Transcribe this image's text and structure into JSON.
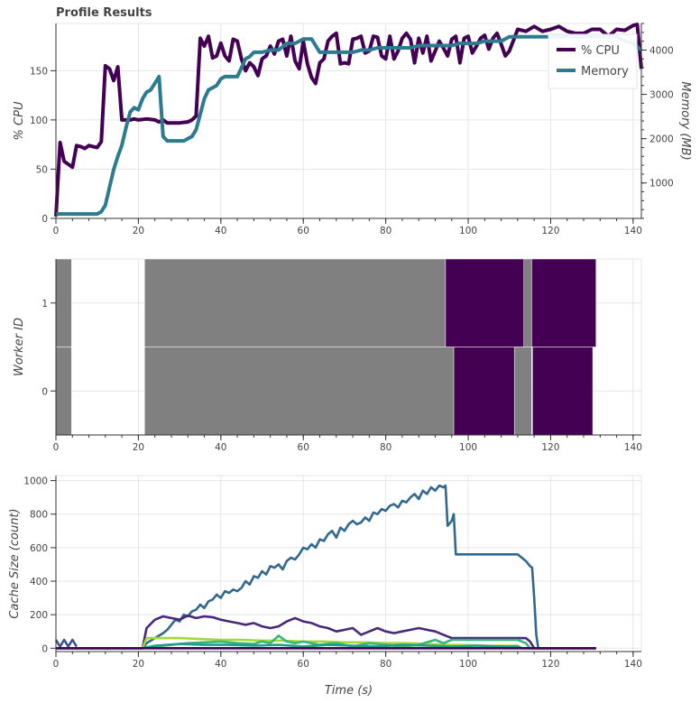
{
  "chart_data": [
    {
      "type": "line",
      "title": "Profile Results",
      "xlabel": "",
      "ylabel": "% CPU",
      "ylabel_right": "Memory (MB)",
      "xlim": [
        0,
        142
      ],
      "ylim": [
        0,
        198
      ],
      "ylim_right": [
        200,
        4600
      ],
      "xticks": [
        0,
        20,
        40,
        60,
        80,
        100,
        120,
        140
      ],
      "yticks": [
        0,
        50,
        100,
        150
      ],
      "yticks_right": [
        1000,
        2000,
        3000,
        4000
      ],
      "grid": true,
      "legend_position": "top-right",
      "series": [
        {
          "name": "% CPU",
          "color": "#440154",
          "axis": "left",
          "x": [
            0,
            1,
            2,
            3,
            4,
            5,
            6,
            7,
            8,
            9,
            10,
            11,
            12,
            13,
            14,
            15,
            16,
            17,
            18,
            19,
            20,
            22,
            24,
            25,
            26,
            27,
            28,
            30,
            32,
            33,
            34,
            35,
            36,
            37,
            38,
            39,
            40,
            41,
            42,
            43,
            44,
            45,
            46,
            47,
            48,
            49,
            50,
            51,
            52,
            53,
            54,
            55,
            56,
            57,
            58,
            59,
            60,
            61,
            62,
            63,
            64,
            65,
            66,
            67,
            68,
            69,
            70,
            71,
            72,
            73,
            74,
            75,
            76,
            77,
            78,
            79,
            80,
            81,
            82,
            83,
            84,
            85,
            86,
            87,
            88,
            89,
            90,
            91,
            92,
            93,
            94,
            95,
            96,
            97,
            98,
            99,
            100,
            101,
            102,
            103,
            104,
            105,
            106,
            107,
            108,
            109,
            110,
            112,
            114,
            116,
            118,
            120,
            122,
            124,
            126,
            128,
            130,
            132,
            134,
            136,
            138,
            140,
            141,
            142
          ],
          "y": [
            2,
            77,
            58,
            55,
            52,
            74,
            73,
            71,
            74,
            73,
            72,
            78,
            155,
            152,
            140,
            154,
            100,
            100,
            100,
            101,
            100,
            101,
            100,
            98,
            100,
            97,
            97,
            97,
            98,
            100,
            104,
            183,
            175,
            185,
            163,
            165,
            178,
            165,
            160,
            182,
            180,
            162,
            150,
            158,
            154,
            145,
            162,
            165,
            175,
            167,
            180,
            182,
            165,
            185,
            160,
            152,
            180,
            157,
            143,
            137,
            158,
            162,
            180,
            185,
            188,
            157,
            158,
            157,
            182,
            183,
            185,
            168,
            170,
            185,
            184,
            165,
            162,
            185,
            162,
            170,
            183,
            188,
            182,
            158,
            183,
            168,
            185,
            160,
            170,
            180,
            173,
            165,
            182,
            185,
            158,
            183,
            185,
            168,
            175,
            183,
            186,
            172,
            183,
            188,
            177,
            165,
            170,
            192,
            190,
            195,
            190,
            192,
            195,
            190,
            188,
            188,
            192,
            192,
            185,
            192,
            191,
            196,
            197,
            152
          ]
        },
        {
          "name": "Memory",
          "color": "#2c7b8f",
          "axis": "right",
          "x": [
            0,
            10,
            11,
            12,
            13,
            14,
            15,
            16,
            17,
            18,
            19,
            20,
            21,
            22,
            23,
            24,
            25,
            26,
            27,
            28,
            29,
            30,
            31,
            32,
            33,
            34,
            35,
            36,
            37,
            38,
            39,
            40,
            41,
            42,
            43,
            44,
            45,
            46,
            47,
            48,
            49,
            50,
            52,
            54,
            56,
            58,
            60,
            62,
            63,
            64,
            66,
            68,
            70,
            72,
            74,
            76,
            78,
            80,
            82,
            84,
            86,
            88,
            90,
            92,
            94,
            96,
            98,
            100,
            102,
            104,
            106,
            108,
            110,
            112,
            114,
            116,
            118,
            120,
            122,
            124,
            126,
            128,
            130,
            132,
            134,
            136,
            138,
            140,
            142
          ],
          "y": [
            300,
            300,
            350,
            500,
            900,
            1300,
            1600,
            1850,
            2250,
            2600,
            2700,
            2650,
            2900,
            3050,
            3100,
            3250,
            3400,
            2050,
            1950,
            1950,
            1950,
            1950,
            1950,
            2000,
            2050,
            2200,
            2550,
            2900,
            3100,
            3150,
            3200,
            3350,
            3400,
            3400,
            3400,
            3400,
            3600,
            3800,
            3850,
            3950,
            3950,
            3950,
            4000,
            4000,
            4150,
            4150,
            4250,
            4250,
            4100,
            3950,
            3950,
            3950,
            3950,
            3950,
            4000,
            4000,
            4050,
            4050,
            4050,
            4050,
            4050,
            4100,
            4100,
            4100,
            4100,
            4100,
            4150,
            4150,
            4150,
            4200,
            4200,
            4200,
            4300,
            4300,
            4300,
            4300,
            4300,
            4300,
            4300,
            4300,
            4300,
            4300,
            4300,
            4300,
            4300,
            4300,
            4200,
            4150,
            4000
          ]
        }
      ]
    },
    {
      "type": "bar",
      "subtype": "task-stream",
      "title": "",
      "xlabel": "",
      "ylabel": "Worker ID",
      "xlim": [
        0,
        142
      ],
      "ylim": [
        -0.5,
        1.5
      ],
      "xticks": [
        0,
        20,
        40,
        60,
        80,
        100,
        120,
        140
      ],
      "yticks": [
        0,
        1
      ],
      "grid": true,
      "bars": [
        {
          "worker": 0,
          "start": 0,
          "end": 3.8,
          "color": "#808080"
        },
        {
          "worker": 1,
          "start": 0,
          "end": 3.8,
          "color": "#808080"
        },
        {
          "worker": 0,
          "start": 21.5,
          "end": 96.5,
          "color": "#808080"
        },
        {
          "worker": 1,
          "start": 21.5,
          "end": 94.5,
          "color": "#808080"
        },
        {
          "worker": 1,
          "start": 94.5,
          "end": 113.5,
          "color": "#440154"
        },
        {
          "worker": 0,
          "start": 96.5,
          "end": 111.2,
          "color": "#440154"
        },
        {
          "worker": 0,
          "start": 111.2,
          "end": 115.4,
          "color": "#808080"
        },
        {
          "worker": 1,
          "start": 113.5,
          "end": 115.4,
          "color": "#808080"
        },
        {
          "worker": 1,
          "start": 115.4,
          "end": 131,
          "color": "#440154"
        },
        {
          "worker": 0,
          "start": 115.6,
          "end": 130.2,
          "color": "#440154"
        }
      ]
    },
    {
      "type": "line",
      "title": "",
      "xlabel": "Time (s)",
      "ylabel": "Cache Size (count)",
      "xlim": [
        0,
        142
      ],
      "ylim": [
        -20,
        1030
      ],
      "xticks": [
        0,
        20,
        40,
        60,
        80,
        100,
        120,
        140
      ],
      "yticks": [
        0,
        200,
        400,
        600,
        800,
        1000
      ],
      "grid": true,
      "series": [
        {
          "color": "#31688e",
          "x": [
            0,
            21,
            22,
            24,
            26,
            27,
            28,
            29,
            30,
            31,
            32,
            33,
            34,
            35,
            36,
            37,
            38,
            39,
            40,
            41,
            42,
            43,
            44,
            45,
            46,
            47,
            48,
            49,
            50,
            51,
            52,
            53,
            54,
            55,
            56,
            57,
            58,
            59,
            60,
            61,
            62,
            63,
            64,
            65,
            66,
            67,
            68,
            69,
            70,
            71,
            72,
            73,
            74,
            75,
            76,
            77,
            78,
            79,
            80,
            81,
            82,
            83,
            84,
            85,
            86,
            87,
            88,
            89,
            90,
            91,
            92,
            93,
            94,
            94.5,
            95,
            96,
            96.5,
            97,
            100,
            105,
            110,
            111,
            112,
            113,
            114,
            115,
            115.5,
            116,
            116.5,
            117,
            131
          ],
          "y": [
            0,
            0,
            30,
            60,
            90,
            110,
            140,
            170,
            160,
            200,
            190,
            220,
            230,
            260,
            240,
            280,
            290,
            320,
            300,
            340,
            330,
            350,
            340,
            360,
            400,
            380,
            430,
            420,
            460,
            440,
            490,
            480,
            500,
            470,
            520,
            540,
            530,
            560,
            600,
            590,
            620,
            600,
            650,
            640,
            680,
            700,
            660,
            720,
            700,
            740,
            760,
            740,
            750,
            780,
            760,
            810,
            800,
            830,
            820,
            850,
            860,
            840,
            880,
            870,
            900,
            920,
            890,
            940,
            920,
            960,
            940,
            970,
            960,
            970,
            730,
            760,
            800,
            560,
            560,
            560,
            560,
            560,
            560,
            540,
            520,
            490,
            480,
            300,
            80,
            0,
            0
          ]
        },
        {
          "color": "#3b528b",
          "x": [
            0,
            1,
            2,
            3,
            4,
            5
          ],
          "y": [
            50,
            10,
            50,
            10,
            50,
            10
          ]
        },
        {
          "color": "#482878",
          "x": [
            0,
            21,
            22,
            24,
            26,
            28,
            30,
            32,
            34,
            36,
            38,
            40,
            42,
            44,
            46,
            48,
            50,
            52,
            54,
            56,
            58,
            60,
            62,
            64,
            66,
            68,
            70,
            72,
            74,
            76,
            78,
            80,
            82,
            84,
            86,
            88,
            90,
            92,
            94,
            96,
            98,
            100,
            105,
            110,
            112,
            114,
            115,
            116,
            131
          ],
          "y": [
            0,
            0,
            120,
            170,
            190,
            180,
            170,
            195,
            180,
            190,
            185,
            170,
            160,
            150,
            140,
            150,
            130,
            120,
            130,
            160,
            180,
            160,
            150,
            130,
            120,
            100,
            110,
            120,
            80,
            100,
            120,
            100,
            90,
            100,
            110,
            120,
            110,
            100,
            80,
            60,
            60,
            60,
            60,
            60,
            60,
            60,
            40,
            0,
            0
          ]
        },
        {
          "color": "#a0da39",
          "x": [
            0,
            21,
            22,
            25,
            30,
            35,
            40,
            45,
            50,
            55,
            60,
            65,
            70,
            75,
            80,
            85,
            90,
            95,
            100,
            105,
            110,
            112,
            113,
            131
          ],
          "y": [
            0,
            0,
            60,
            60,
            60,
            55,
            50,
            50,
            45,
            45,
            40,
            40,
            35,
            35,
            30,
            30,
            25,
            20,
            18,
            15,
            15,
            15,
            0,
            0
          ]
        },
        {
          "color": "#35b779",
          "x": [
            0,
            21,
            24,
            28,
            32,
            36,
            40,
            44,
            48,
            50,
            52,
            54,
            56,
            58,
            60,
            64,
            68,
            72,
            76,
            80,
            84,
            88,
            90,
            92,
            94,
            96,
            100,
            104,
            108,
            112,
            114,
            115,
            131
          ],
          "y": [
            0,
            0,
            10,
            20,
            30,
            35,
            40,
            30,
            25,
            40,
            30,
            75,
            40,
            30,
            40,
            20,
            30,
            10,
            30,
            20,
            10,
            20,
            35,
            50,
            30,
            50,
            50,
            50,
            50,
            50,
            30,
            0,
            0
          ]
        },
        {
          "color": "#1f9e89",
          "x": [
            0,
            21,
            24,
            30,
            36,
            42,
            48,
            54,
            60,
            66,
            72,
            78,
            84,
            90,
            96,
            102,
            108,
            112,
            113,
            131
          ],
          "y": [
            0,
            0,
            15,
            25,
            20,
            20,
            15,
            20,
            10,
            20,
            15,
            10,
            20,
            15,
            10,
            15,
            10,
            10,
            0,
            0
          ]
        },
        {
          "color": "#440154",
          "x": [
            0,
            131
          ],
          "y": [
            0,
            0
          ]
        }
      ]
    }
  ]
}
